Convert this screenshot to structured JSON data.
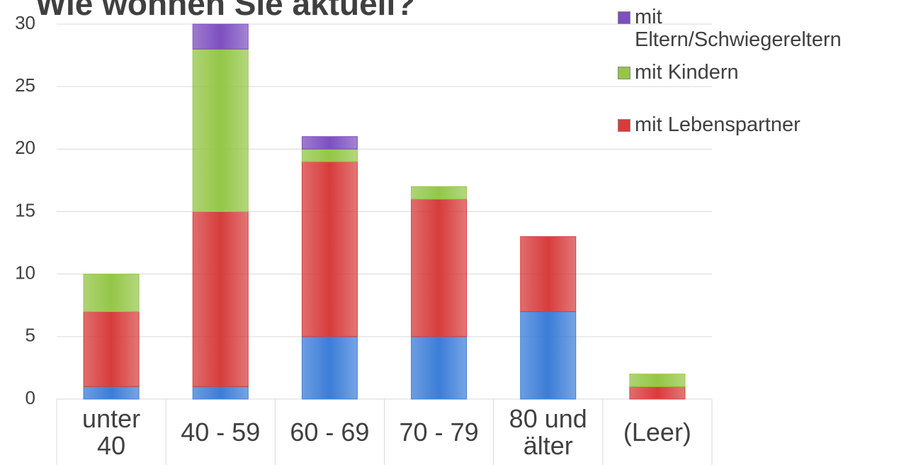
{
  "chart_data": {
    "type": "stacked_bar",
    "title": "Wie wohnen Sie aktuell?",
    "categories": [
      "unter 40",
      "40 - 59",
      "60 - 69",
      "70 - 79",
      "80 und älter",
      "(Leer)"
    ],
    "series": [
      {
        "color": "#3b7dd8",
        "values": [
          1,
          1,
          5,
          5,
          7,
          0
        ]
      },
      {
        "name": "mit Lebenspartner",
        "color": "#d73c3c",
        "values": [
          6,
          14,
          14,
          11,
          6,
          1
        ]
      },
      {
        "name": "mit Kindern",
        "color": "#94c647",
        "values": [
          3,
          13,
          1,
          1,
          0,
          1
        ]
      },
      {
        "name": "mit Eltern/Schwiegereltern",
        "color": "#7d4fc0",
        "values": [
          0,
          2,
          1,
          0,
          0,
          0
        ]
      }
    ],
    "ylim": [
      0,
      30
    ],
    "yticks": [
      0,
      5,
      10,
      15,
      20,
      25,
      30
    ],
    "grid": true
  }
}
